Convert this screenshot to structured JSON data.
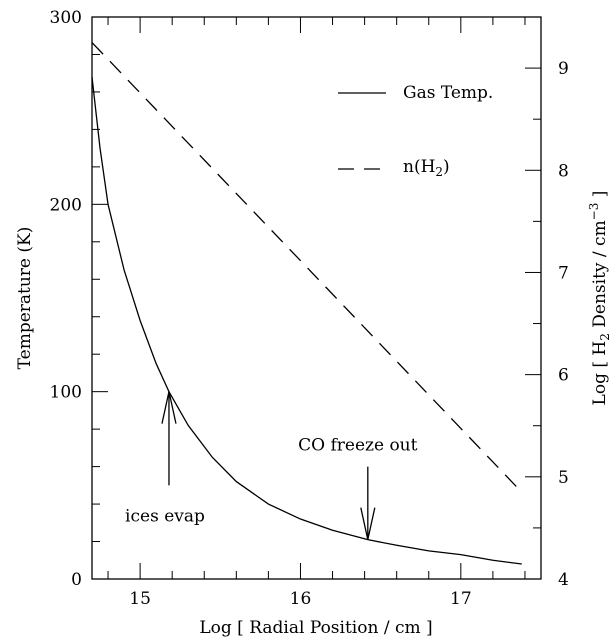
{
  "chart_data": {
    "type": "line",
    "xlabel": "Log [ Radial Position / cm ]",
    "ylabel_left": "Temperature (K)",
    "ylabel_right_parts": [
      "Log [ H",
      "2",
      " Density / cm",
      "−3",
      " ]"
    ],
    "xlim": [
      14.7,
      17.5
    ],
    "ylim_left": [
      0,
      300
    ],
    "ylim_right": [
      4,
      9.5
    ],
    "x_ticks": [
      15,
      16,
      17
    ],
    "y_ticks_left": [
      0,
      100,
      200,
      300
    ],
    "y_ticks_right": [
      4,
      5,
      6,
      7,
      8,
      9
    ],
    "series": [
      {
        "name": "Gas Temp.",
        "axis": "left",
        "style": "solid",
        "x": [
          14.7,
          14.75,
          14.8,
          14.9,
          15.0,
          15.1,
          15.18,
          15.3,
          15.45,
          15.6,
          15.8,
          16.0,
          16.2,
          16.42,
          16.6,
          16.8,
          17.0,
          17.2,
          17.38
        ],
        "y": [
          268,
          230,
          200,
          165,
          138,
          115,
          100,
          82,
          65,
          52,
          40,
          32,
          26,
          21,
          18,
          15,
          13,
          10,
          8
        ]
      },
      {
        "name": "n(H",
        "name_sub": "2",
        "name_tail": ")",
        "axis": "right",
        "style": "dashed",
        "x": [
          14.7,
          17.38
        ],
        "y": [
          9.25,
          4.85
        ]
      }
    ],
    "annotations": [
      {
        "text": "ices evap",
        "arrow_x": 15.18,
        "arrow_y_from": 50,
        "arrow_y_to": 100,
        "direction": "up"
      },
      {
        "text": "CO freeze out",
        "arrow_x": 16.42,
        "arrow_y_from": 60,
        "arrow_y_to": 21,
        "direction": "down"
      }
    ],
    "legend_position": "top-right",
    "grid": false
  }
}
